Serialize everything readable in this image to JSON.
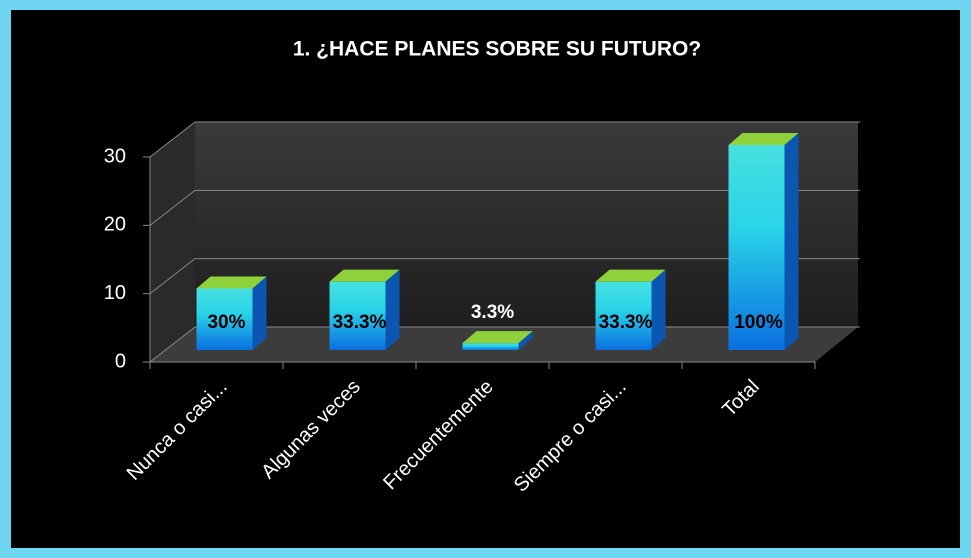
{
  "chart_data": {
    "type": "bar3d",
    "title": "1. ¿HACE PLANES SOBRE SU FUTURO?",
    "categories": [
      "Nunca o casi...",
      "Algunas veces",
      "Frecuentemente",
      "Siempre o casi...",
      "Total"
    ],
    "values": [
      9,
      10,
      1,
      10,
      30
    ],
    "value_labels": [
      "30%",
      "33.3%",
      "3.3%",
      "33.3%",
      "100%"
    ],
    "ylim": [
      0,
      30
    ],
    "yticks": [
      0,
      10,
      20,
      30
    ],
    "grid": true
  }
}
